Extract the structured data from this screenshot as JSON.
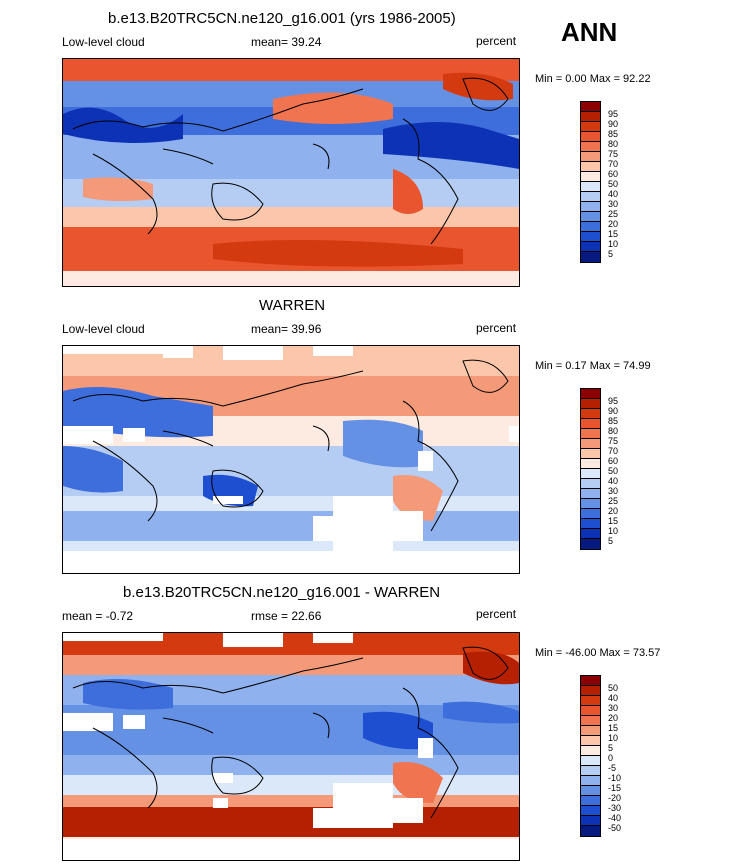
{
  "season_label": "ANN",
  "panel1": {
    "title": "b.e13.B20TRC5CN.ne120_g16.001 (yrs 1986-2005)",
    "left_label": "Low-level cloud",
    "stat_label": "mean=  39.24",
    "units": "percent",
    "minmax": "Min =   0.00 Max =  92.22"
  },
  "panel2": {
    "title": "WARREN",
    "left_label": "Low-level cloud",
    "stat_label": "mean=  39.96",
    "units": "percent",
    "minmax": "Min =   0.17 Max =  74.99"
  },
  "panel3": {
    "title": "b.e13.B20TRC5CN.ne120_g16.001 - WARREN",
    "left_label": "mean =  -0.72",
    "stat_label": "rmse =  22.66",
    "units": "percent",
    "minmax": "Min = -46.00 Max =  73.57"
  },
  "colorbar_abs": {
    "labels": [
      "95",
      "90",
      "85",
      "80",
      "75",
      "70",
      "60",
      "50",
      "40",
      "30",
      "25",
      "20",
      "15",
      "10",
      "5"
    ],
    "colors": [
      "#8b0000",
      "#b52000",
      "#d43a10",
      "#e8552e",
      "#f07450",
      "#f59a78",
      "#fbc6aa",
      "#fdebe1",
      "#dbe8fa",
      "#b5cdf3",
      "#8fb1ee",
      "#6591e5",
      "#3d6edb",
      "#1f4fd1",
      "#0d32b5",
      "#061a80"
    ]
  },
  "colorbar_diff": {
    "labels": [
      "50",
      "40",
      "30",
      "20",
      "15",
      "10",
      "5",
      "0",
      "-5",
      "-10",
      "-15",
      "-20",
      "-30",
      "-40",
      "-50"
    ],
    "colors": [
      "#8b0000",
      "#b52000",
      "#d43a10",
      "#e8552e",
      "#f07450",
      "#f59a78",
      "#fbc6aa",
      "#fdebe1",
      "#dbe8fa",
      "#b5cdf3",
      "#8fb1ee",
      "#6591e5",
      "#3d6edb",
      "#1f4fd1",
      "#0d32b5",
      "#061a80"
    ]
  }
}
